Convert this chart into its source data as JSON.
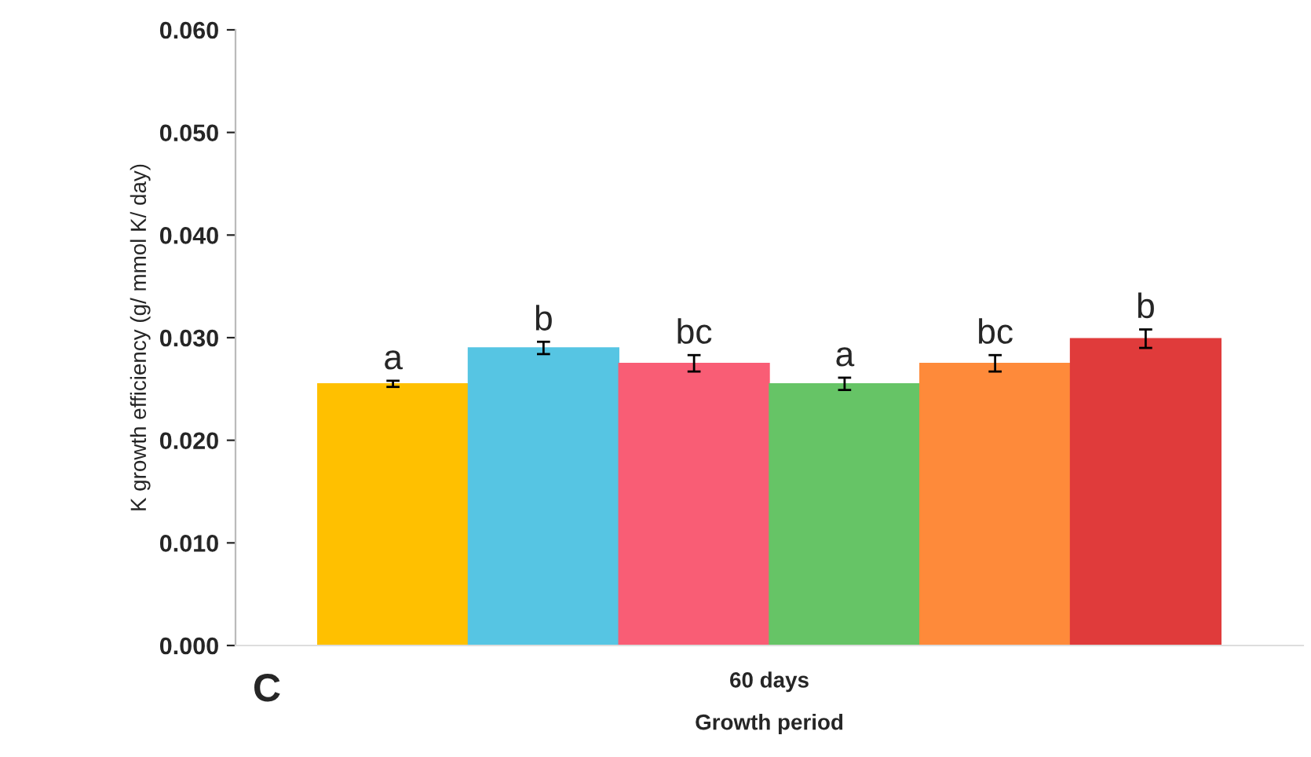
{
  "chart_data": {
    "type": "bar",
    "categories": [
      "60 days"
    ],
    "series": [
      {
        "color": "#ffc000",
        "values": [
          0.0255
        ],
        "errors": [
          0.0003
        ]
      },
      {
        "color": "#56c5e3",
        "values": [
          0.029
        ],
        "errors": [
          0.0006
        ]
      },
      {
        "color": "#f95d75",
        "values": [
          0.0275
        ],
        "errors": [
          0.0008
        ]
      },
      {
        "color": "#66c466",
        "values": [
          0.0255
        ],
        "errors": [
          0.0006
        ]
      },
      {
        "color": "#fe8a3a",
        "values": [
          0.0275
        ],
        "errors": [
          0.0008
        ]
      },
      {
        "color": "#e03b3b",
        "values": [
          0.0299
        ],
        "errors": [
          0.0009
        ]
      }
    ],
    "xlabel": "Growth period",
    "ylabel": "K growth efficiency (g/ mmol K/ day)",
    "ylim": [
      0,
      0.06
    ],
    "yticks": [
      {
        "value": 0,
        "label": "0.000"
      },
      {
        "value": 0.01,
        "label": "0.010"
      },
      {
        "value": 0.02,
        "label": "0.020"
      },
      {
        "value": 0.03,
        "label": "0.030"
      },
      {
        "value": 0.04,
        "label": "0.040"
      },
      {
        "value": 0.05,
        "label": "0.050"
      },
      {
        "value": 0.06,
        "label": "0.060"
      }
    ],
    "annotations": [
      "a",
      "b",
      "bc",
      "a",
      "bc",
      "b",
      "C"
    ],
    "grid": false,
    "legend": false
  }
}
